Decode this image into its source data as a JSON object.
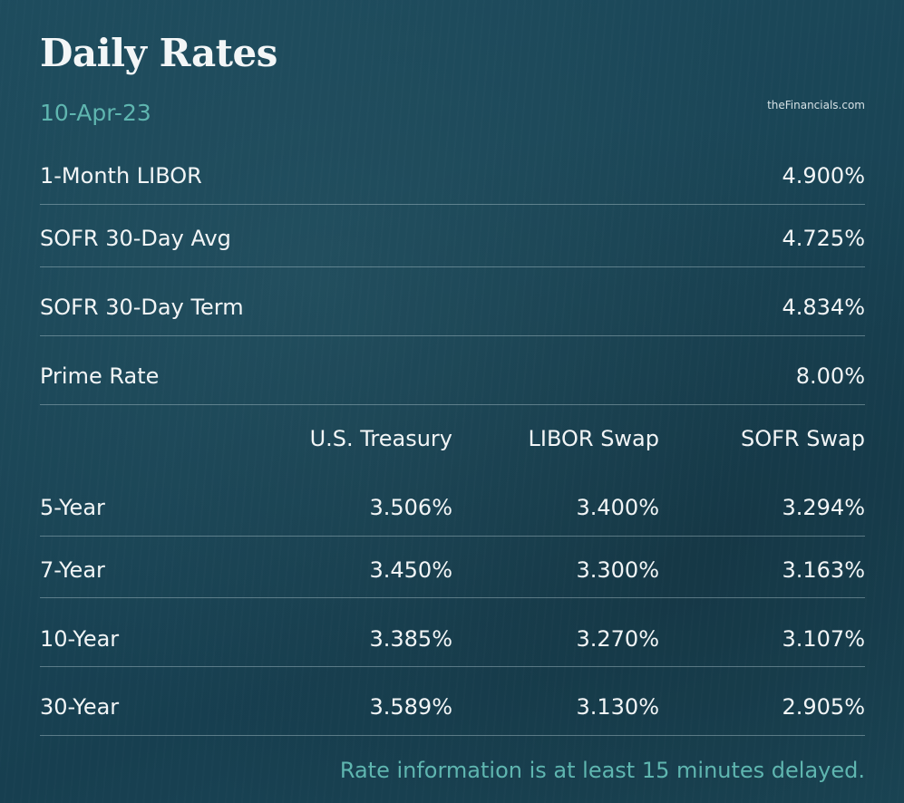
{
  "header": {
    "title": "Daily Rates",
    "date": "10-Apr-23",
    "source": "theFinancials.com"
  },
  "rates": [
    {
      "label": "1-Month LIBOR",
      "value": "4.900%"
    },
    {
      "label": "SOFR 30-Day Avg",
      "value": "4.725%"
    },
    {
      "label": "SOFR 30-Day Term",
      "value": "4.834%"
    },
    {
      "label": "Prime Rate",
      "value": "8.00%"
    }
  ],
  "swap_table": {
    "columns": [
      "",
      "U.S. Treasury",
      "LIBOR Swap",
      "SOFR Swap"
    ],
    "rows": [
      {
        "term": "5-Year",
        "treasury": "3.506%",
        "libor_swap": "3.400%",
        "sofr_swap": "3.294%"
      },
      {
        "term": "7-Year",
        "treasury": "3.450%",
        "libor_swap": "3.300%",
        "sofr_swap": "3.163%"
      },
      {
        "term": "10-Year",
        "treasury": "3.385%",
        "libor_swap": "3.270%",
        "sofr_swap": "3.107%"
      },
      {
        "term": "30-Year",
        "treasury": "3.589%",
        "libor_swap": "3.130%",
        "sofr_swap": "2.905%"
      }
    ]
  },
  "footer": {
    "note": "Rate information is at least 15 minutes delayed."
  },
  "colors": {
    "background": "#1a4556",
    "accent": "#5fb6b0",
    "text": "#f2f5f6",
    "divider": "#c8dce2"
  }
}
